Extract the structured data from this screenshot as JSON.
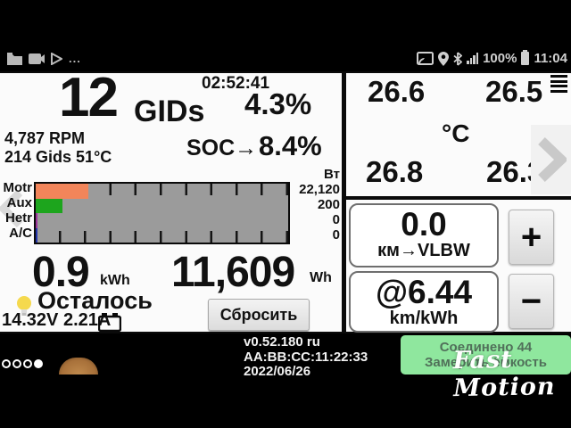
{
  "status_bar": {
    "time": "11:04",
    "battery_pct": "100%",
    "more": "..."
  },
  "left_panel": {
    "timer": "02:52:41",
    "gids_value": "12",
    "gids_label": "GIDs",
    "gids_pct": "4.3%",
    "rpm_line": "4,787 RPM",
    "gids_line": "214 Gids 51°C",
    "soc_label": "SOC→",
    "soc_value": "8.4%",
    "chart": {
      "unit": "Вт",
      "rows": [
        {
          "label": "Motr",
          "value": "22,120",
          "width_pct": 21,
          "color": "#f2855a"
        },
        {
          "label": "Aux",
          "value": "200",
          "width_pct": 10.5,
          "color": "#1da51d"
        },
        {
          "label": "Hetr",
          "value": "0",
          "width_pct": 0.8,
          "color": "#993399"
        },
        {
          "label": "A/C",
          "value": "0",
          "width_pct": 0.8,
          "color": "#2233aa"
        }
      ],
      "background": "#9b9b9b"
    },
    "kwh_value": "0.9",
    "kwh_unit": "kWh",
    "wh_value": "11,609",
    "wh_unit": "Wh",
    "remaining_label": "Осталось",
    "aux_battery": "14.32V 2.21A",
    "reset_button": "Сбросить"
  },
  "right_panel": {
    "temp_top_left": "26.6",
    "temp_top_right": "26.5",
    "temp_bottom_left": "26.8",
    "temp_bottom_right": "26.3",
    "temp_unit": "°C",
    "trip_value": "0.0",
    "trip_label": "км→VLBW",
    "efficiency_value": "@6.44",
    "efficiency_label": "km/kWh",
    "plus_label": "+",
    "minus_label": "−"
  },
  "bottom_bar": {
    "version": "v0.52.180 ru",
    "mac": "AA:BB:CC:11:22:33",
    "date": "2022/06/26",
    "connect_status": "Соединено 44",
    "connect_action": "Замерить ёмкость",
    "button_color": "#8fe79e",
    "watermark": "Fast Motion"
  }
}
